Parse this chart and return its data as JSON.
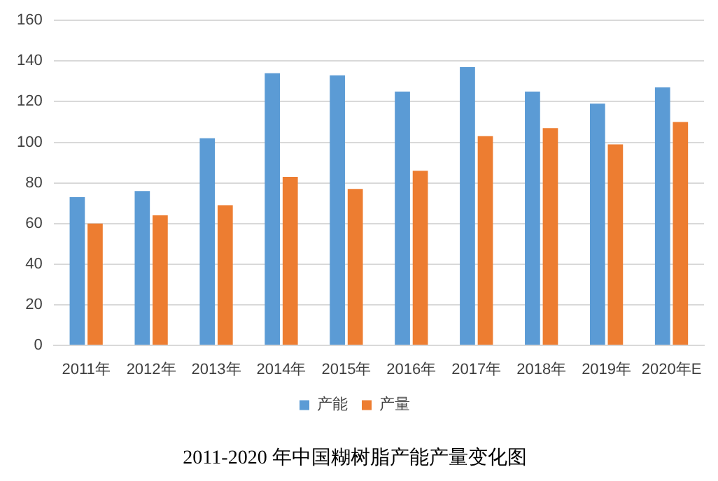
{
  "chart_data": {
    "type": "bar",
    "title": "2011-2020 年中国糊树脂产能产量变化图",
    "categories": [
      "2011年",
      "2012年",
      "2013年",
      "2014年",
      "2015年",
      "2016年",
      "2017年",
      "2018年",
      "2019年",
      "2020年E"
    ],
    "series": [
      {
        "name": "产能",
        "color": "#5b9bd5",
        "values": [
          73,
          76,
          102,
          134,
          133,
          125,
          137,
          125,
          119,
          127
        ]
      },
      {
        "name": "产量",
        "color": "#ed7d31",
        "values": [
          60,
          64,
          69,
          83,
          77,
          86,
          103,
          107,
          99,
          110
        ]
      }
    ],
    "ylim": [
      0,
      160
    ],
    "yticks": [
      0,
      20,
      40,
      60,
      80,
      100,
      120,
      140,
      160
    ],
    "grid": "y",
    "legend": "bottom"
  }
}
